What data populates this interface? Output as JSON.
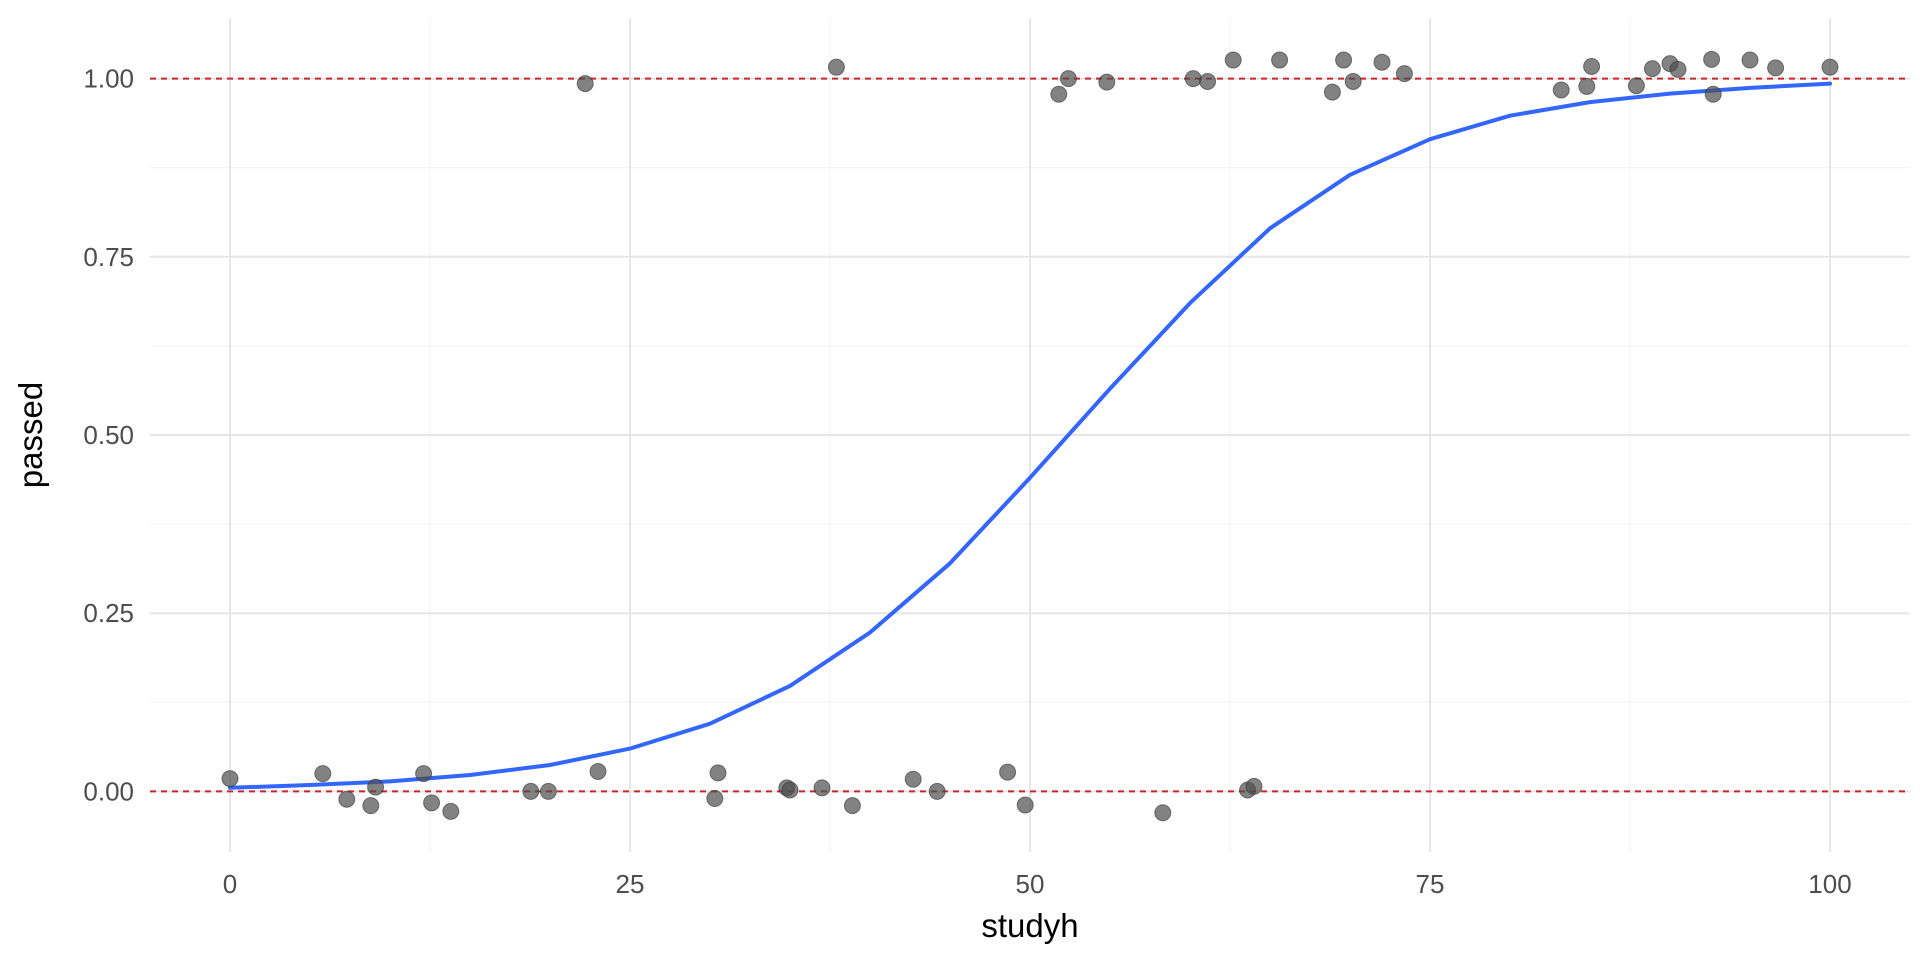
{
  "chart_data": {
    "type": "scatter",
    "title": "",
    "xlabel": "studyh",
    "ylabel": "passed",
    "xlim": [
      -5,
      105
    ],
    "ylim": [
      -0.085,
      1.085
    ],
    "x_ticks": [
      0,
      25,
      50,
      75,
      100
    ],
    "x_tick_labels": [
      "0",
      "25",
      "50",
      "75",
      "100"
    ],
    "y_ticks": [
      0,
      0.25,
      0.5,
      0.75,
      1
    ],
    "y_tick_labels": [
      "0.00",
      "0.25",
      "0.50",
      "0.75",
      "1.00"
    ],
    "grid": true,
    "legend": "none",
    "reference_lines": [
      {
        "y": 0,
        "style": "dashed",
        "color": "#c8282d"
      },
      {
        "y": 1,
        "style": "dashed",
        "color": "#c8282d"
      }
    ],
    "series": [
      {
        "kind": "points",
        "color": "#4d4d4d",
        "points": [
          [
            0,
            0.018
          ],
          [
            5.8,
            0.025
          ],
          [
            7.3,
            -0.011
          ],
          [
            8.8,
            -0.02
          ],
          [
            9.1,
            0.006
          ],
          [
            12.1,
            0.025
          ],
          [
            12.6,
            -0.016
          ],
          [
            13.8,
            -0.028
          ],
          [
            18.8,
            0.0
          ],
          [
            19.9,
            0.0
          ],
          [
            22.2,
            0.993
          ],
          [
            23.0,
            0.028
          ],
          [
            30.3,
            -0.01
          ],
          [
            30.5,
            0.026
          ],
          [
            34.8,
            0.005
          ],
          [
            35.0,
            0.002
          ],
          [
            37.0,
            0.005
          ],
          [
            37.9,
            1.016
          ],
          [
            38.9,
            -0.02
          ],
          [
            42.7,
            0.017
          ],
          [
            44.2,
            0.0
          ],
          [
            48.6,
            0.027
          ],
          [
            49.7,
            -0.019
          ],
          [
            51.8,
            0.978
          ],
          [
            52.4,
            1.0
          ],
          [
            54.8,
            0.995
          ],
          [
            58.3,
            -0.03
          ],
          [
            60.2,
            1.0
          ],
          [
            61.1,
            0.996
          ],
          [
            62.7,
            1.026
          ],
          [
            63.6,
            0.002
          ],
          [
            64.0,
            0.007
          ],
          [
            65.6,
            1.026
          ],
          [
            68.9,
            0.981
          ],
          [
            69.6,
            1.026
          ],
          [
            70.2,
            0.996
          ],
          [
            72.0,
            1.023
          ],
          [
            73.4,
            1.007
          ],
          [
            83.2,
            0.984
          ],
          [
            84.8,
            0.989
          ],
          [
            85.1,
            1.017
          ],
          [
            87.9,
            0.99
          ],
          [
            88.9,
            1.014
          ],
          [
            90.0,
            1.021
          ],
          [
            90.5,
            1.013
          ],
          [
            92.6,
            1.027
          ],
          [
            92.7,
            0.978
          ],
          [
            95.0,
            1.026
          ],
          [
            96.6,
            1.015
          ],
          [
            100.0,
            1.016
          ]
        ]
      },
      {
        "kind": "line",
        "color": "#3366ff",
        "x": [
          0,
          5,
          10,
          15,
          20,
          25,
          30,
          35,
          40,
          45,
          50,
          55,
          60,
          65,
          70,
          75,
          80,
          85,
          90,
          95,
          100
        ],
        "y": [
          0.005,
          0.009,
          0.014,
          0.023,
          0.037,
          0.06,
          0.095,
          0.148,
          0.223,
          0.32,
          0.44,
          0.565,
          0.685,
          0.79,
          0.865,
          0.915,
          0.948,
          0.967,
          0.979,
          0.987,
          0.993
        ]
      }
    ]
  }
}
